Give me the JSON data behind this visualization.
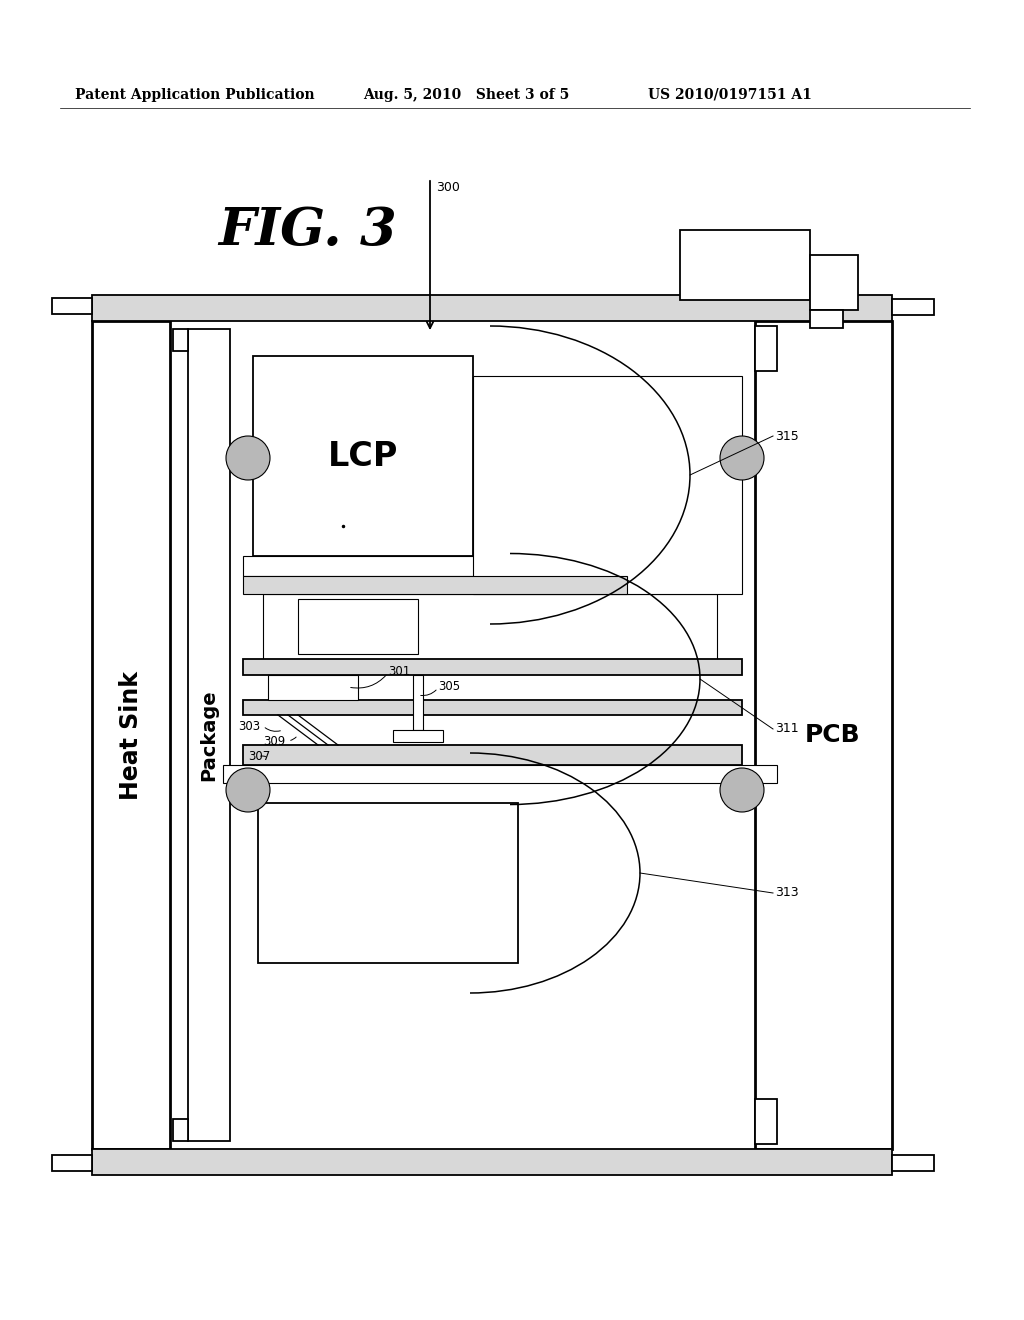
{
  "bg_color": "#ffffff",
  "header_left": "Patent Application Publication",
  "header_mid": "Aug. 5, 2010   Sheet 3 of 5",
  "header_right": "US 2010/0197151 A1",
  "fig_label": "FIG. 3",
  "ref_300": "300",
  "ref_301": "301",
  "ref_303": "303",
  "ref_305": "305",
  "ref_307": "307",
  "ref_309": "309",
  "ref_311": "311",
  "ref_313": "313",
  "ref_315": "315",
  "label_lcp": "LCP",
  "label_heatsink": "Heat Sink",
  "label_package": "Package",
  "label_pcb": "PCB",
  "line_color": "#000000",
  "gray_fill": "#d8d8d8",
  "ball_fill": "#b8b8b8"
}
